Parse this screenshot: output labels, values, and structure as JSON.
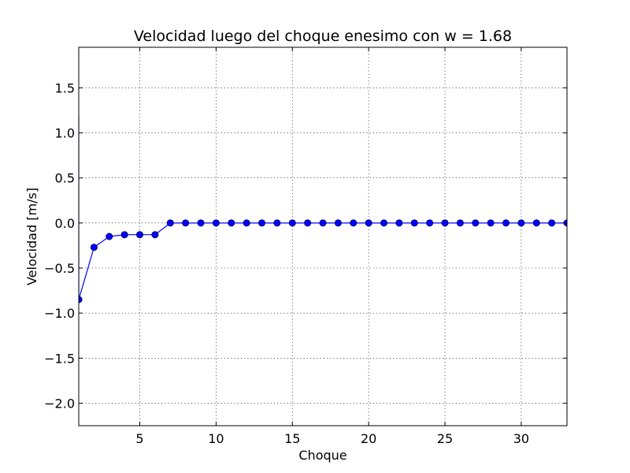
{
  "chart_data": {
    "type": "line",
    "title": "Velocidad luego del choque enesimo con w = 1.68",
    "xlabel": "Choque",
    "ylabel": "Velocidad [m/s]",
    "xlim": [
      1,
      33
    ],
    "ylim": [
      -2.25,
      1.95
    ],
    "xticks": [
      5,
      10,
      15,
      20,
      25,
      30
    ],
    "yticks": [
      -2.0,
      -1.5,
      -1.0,
      -0.5,
      0.0,
      0.5,
      1.0,
      1.5
    ],
    "xtick_labels": [
      "5",
      "10",
      "15",
      "20",
      "25",
      "30"
    ],
    "ytick_labels": [
      "−2.0",
      "−1.5",
      "−1.0",
      "−0.5",
      "0.0",
      "0.5",
      "1.0",
      "1.5"
    ],
    "grid": true,
    "line_start": {
      "x": 1,
      "y": 1.2
    },
    "series": [
      {
        "color": "#0000ff",
        "marker": "circle",
        "x": [
          1,
          2,
          3,
          4,
          5,
          6,
          7,
          8,
          9,
          10,
          11,
          12,
          13,
          14,
          15,
          16,
          17,
          18,
          19,
          20,
          21,
          22,
          23,
          24,
          25,
          26,
          27,
          28,
          29,
          30,
          31,
          32,
          33
        ],
        "y": [
          -0.85,
          -0.27,
          -0.15,
          -0.13,
          -0.13,
          -0.13,
          0.0,
          0.0,
          0.0,
          0.0,
          0.0,
          0.0,
          0.0,
          0.0,
          0.0,
          0.0,
          0.0,
          0.0,
          0.0,
          0.0,
          0.0,
          0.0,
          0.0,
          0.0,
          0.0,
          0.0,
          0.0,
          0.0,
          0.0,
          0.0,
          0.0,
          0.0,
          0.0
        ]
      }
    ]
  }
}
